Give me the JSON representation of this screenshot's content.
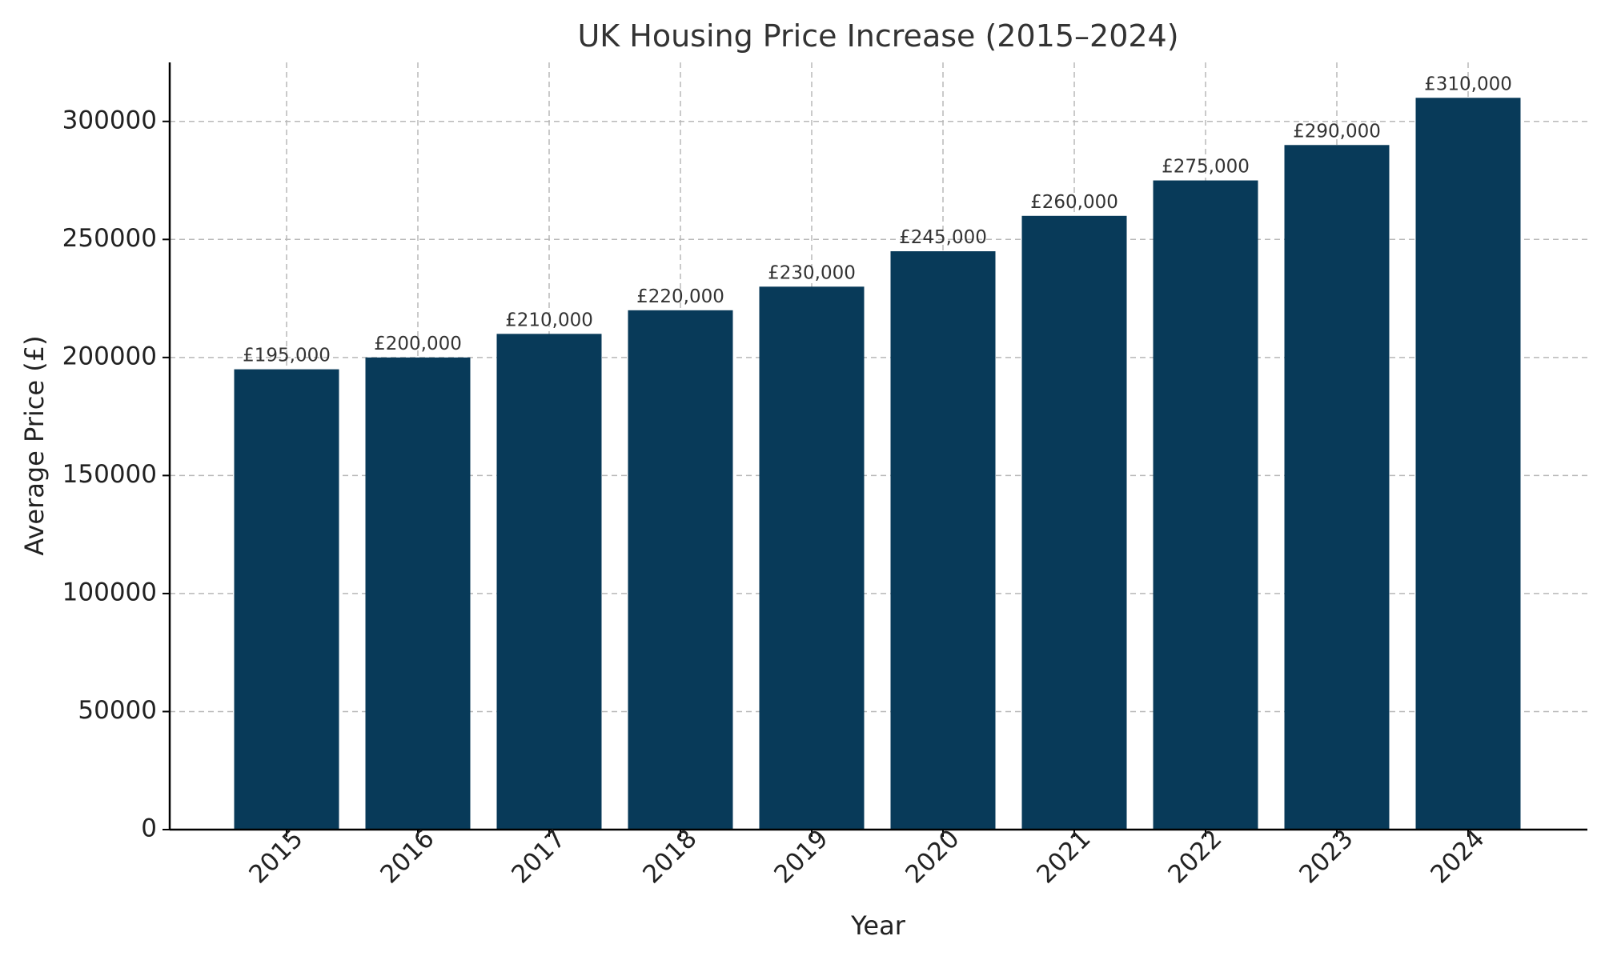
{
  "chart_data": {
    "type": "bar",
    "title": "UK Housing Price Increase (2015–2024)",
    "xlabel": "Year",
    "ylabel": "Average Price (£)",
    "categories": [
      "2015",
      "2016",
      "2017",
      "2018",
      "2019",
      "2020",
      "2021",
      "2022",
      "2023",
      "2024"
    ],
    "values": [
      195000,
      200000,
      210000,
      220000,
      230000,
      245000,
      260000,
      275000,
      290000,
      310000
    ],
    "data_labels": [
      "£195,000",
      "£200,000",
      "£210,000",
      "£220,000",
      "£230,000",
      "£245,000",
      "£260,000",
      "£275,000",
      "£290,000",
      "£310,000"
    ],
    "ylim": [
      0,
      325000
    ],
    "yticks": [
      0,
      50000,
      100000,
      150000,
      200000,
      250000,
      300000
    ],
    "ytick_labels": [
      "0",
      "50000",
      "100000",
      "150000",
      "200000",
      "250000",
      "300000"
    ],
    "grid": true,
    "legend": "none",
    "colors": {
      "bar": "#083a59",
      "grid": "#b8b8b8",
      "axis": "#000000"
    }
  }
}
